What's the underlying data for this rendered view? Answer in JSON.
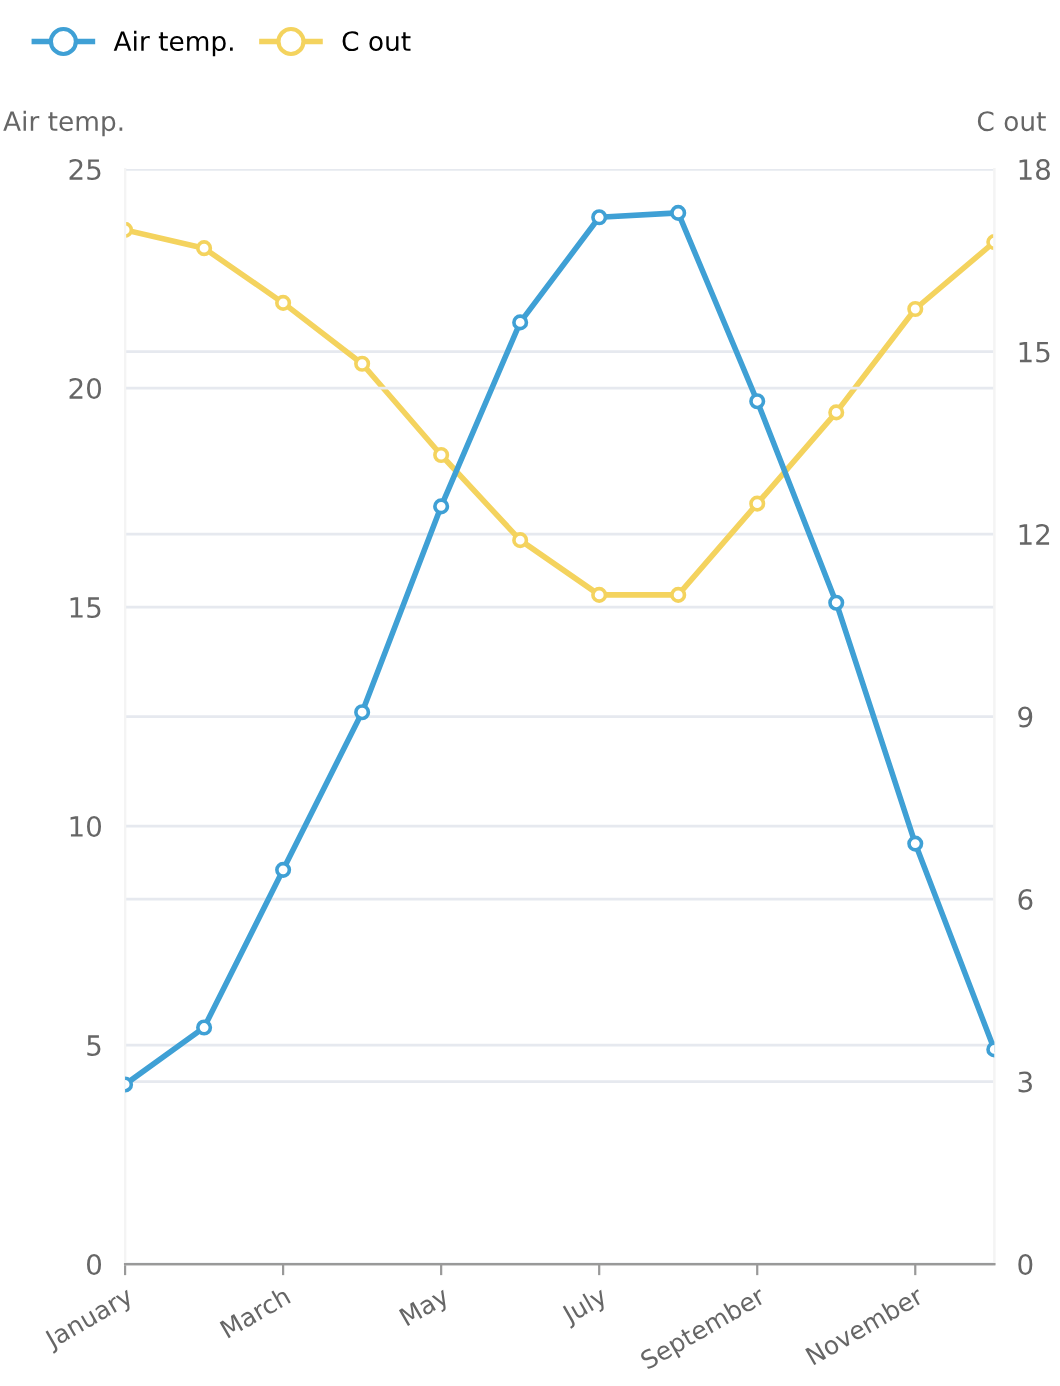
{
  "chart_data": {
    "type": "line",
    "ylabel": "Air temp.",
    "y2label": "C out",
    "categories": [
      "January",
      null,
      "March",
      null,
      "May",
      null,
      "July",
      null,
      "September",
      null,
      "November",
      null
    ],
    "series": [
      {
        "name": "Air temp.",
        "color": "#3fa0d5",
        "values": [
          4.1,
          5.4,
          9.0,
          12.6,
          17.3,
          21.5,
          23.9,
          24.0,
          19.7,
          15.1,
          9.6,
          4.9
        ]
      },
      {
        "name": "C out",
        "color": "#f4d35e",
        "axis": "y2",
        "values": [
          17.0,
          16.7,
          15.8,
          14.8,
          13.3,
          11.9,
          11.0,
          11.0,
          12.5,
          14.0,
          15.7,
          16.8
        ]
      }
    ],
    "ylim": [
      0,
      25
    ],
    "yticks": [
      0,
      5,
      10,
      15,
      20,
      25
    ],
    "y2lim": [
      0,
      18
    ],
    "y2ticks": [
      0,
      3,
      6,
      9,
      12,
      15,
      18
    ],
    "grid": "y",
    "legend": "top left",
    "marker": "circle",
    "line_style": "solid"
  }
}
